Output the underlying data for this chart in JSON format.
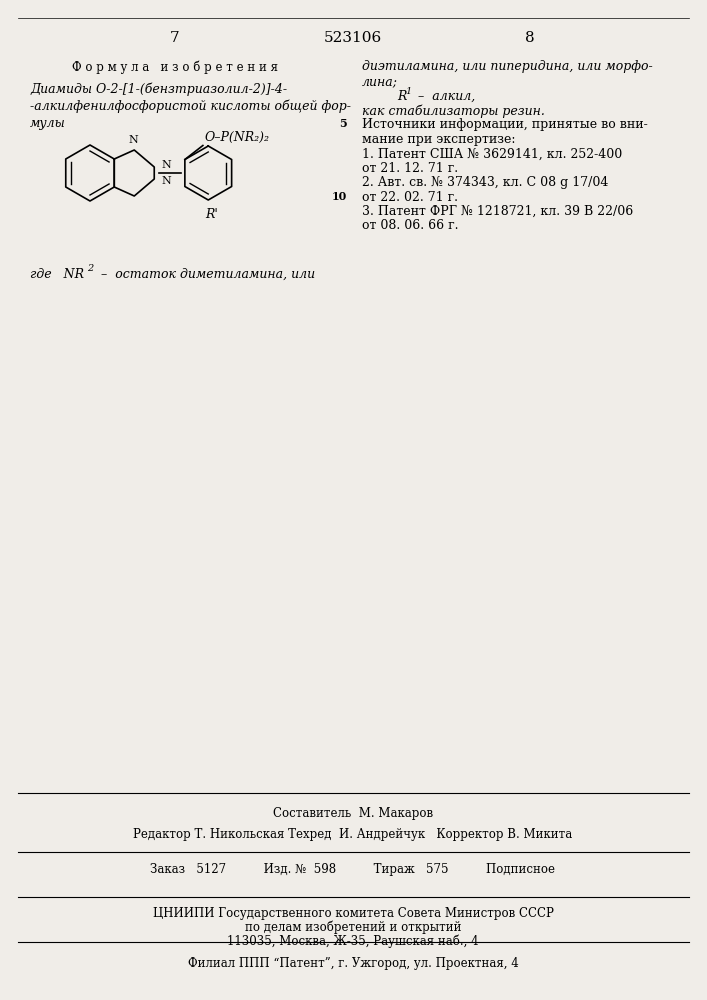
{
  "bg_color": "#f0ede8",
  "page_number_left": "7",
  "page_number_center": "523106",
  "page_number_right": "8",
  "left_col": {
    "heading": "Ф о р м у л а   и з о б р е т е н и я",
    "para1": "Диамиды О-2-[1-(бензтриазолил-2)]-4-\n-алкилфенилфосфористой кислоты общей фор-\nмулы",
    "formula_label_pre": "где   NR",
    "formula_label_post": "  –  остаток диметиламина, или"
  },
  "right_col": {
    "line1": "диэтиламина, или пиперидина, или морфо-",
    "line2": "лина;",
    "line3_pre": "R",
    "line3_post": "  –  алкил,",
    "line4": "как стабилизаторы резин.",
    "label5": "5",
    "heading2": "Источники информации, принятые во вни-",
    "line6": "мание при экспертизе:",
    "ref1": "1. Патент США № 3629141, кл. 252-400",
    "ref1b": "от 21. 12. 71 г.",
    "ref2": "2. Авт. св. № 374343, кл. С 08 g 17/04",
    "label10": "10",
    "ref2b": "от 22. 02. 71 г.",
    "ref3": "3. Патент ФРГ № 1218721, кл. 39 В 22/06",
    "ref3b": "от 08. 06. 66 г."
  },
  "footer": {
    "compositor": "Составитель  М. Макаров",
    "editor_line": "Редактор Т. Никольская Техред  И. Андрейчук   Корректор В. Микита",
    "order_line": "Заказ   5127          Изд. №  598          Тираж   575          Подписное",
    "org1": "ЦНИИПИ Государственного комитета Совета Министров СССР",
    "org2": "по делам изобретений и открытий",
    "org3": "113035, Москва, Ж-35, Раушская наб., 4",
    "branch": "Филиал ППП “Патент”, г. Ужгород, ул. Проектная, 4"
  }
}
